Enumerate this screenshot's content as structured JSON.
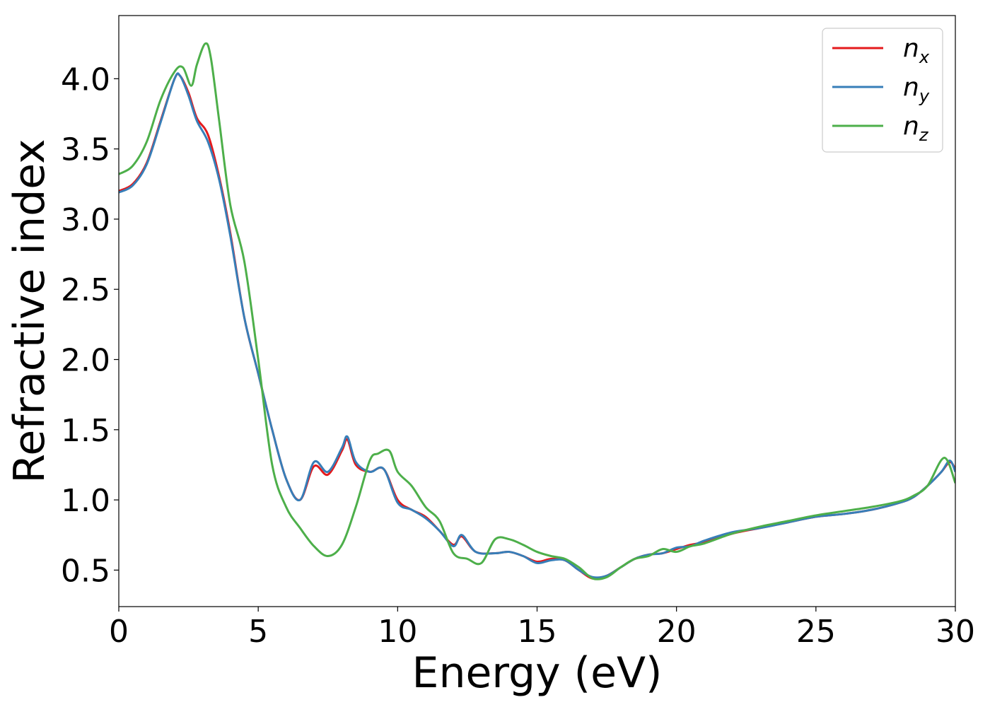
{
  "chart_data": {
    "type": "line",
    "title": "",
    "xlabel": "Energy (eV)",
    "ylabel": "Refractive index",
    "xlim": [
      0,
      30
    ],
    "ylim": [
      0.24,
      4.45
    ],
    "xticks": [
      0,
      5,
      10,
      15,
      20,
      25,
      30
    ],
    "xtick_labels": [
      "0",
      "5",
      "10",
      "15",
      "20",
      "25",
      "30"
    ],
    "yticks": [
      0.5,
      1.0,
      1.5,
      2.0,
      2.5,
      3.0,
      3.5,
      4.0
    ],
    "ytick_labels": [
      "0.5",
      "1.0",
      "1.5",
      "2.0",
      "2.5",
      "3.0",
      "3.5",
      "4.0"
    ],
    "grid": false,
    "legend_position": "top-right",
    "series": [
      {
        "name": "n_x",
        "label_main": "n",
        "label_sub": "x",
        "color": "#e41a1c",
        "x": [
          0,
          0.5,
          1.0,
          1.5,
          2.0,
          2.2,
          2.5,
          2.8,
          3.2,
          3.6,
          4.0,
          4.5,
          5.0,
          5.5,
          6.0,
          6.5,
          7.0,
          7.5,
          8.0,
          8.2,
          8.5,
          9.0,
          9.5,
          10.0,
          10.5,
          11.0,
          11.5,
          12.0,
          12.3,
          12.8,
          13.5,
          14.0,
          14.5,
          15.0,
          15.5,
          16.0,
          16.5,
          17.0,
          17.5,
          18.0,
          18.5,
          19.0,
          19.5,
          20.0,
          20.5,
          21.0,
          22.0,
          23.0,
          24.0,
          25.0,
          26.0,
          27.0,
          28.0,
          28.5,
          29.0,
          29.5,
          29.8,
          30.0
        ],
        "y": [
          3.2,
          3.25,
          3.4,
          3.7,
          4.0,
          4.02,
          3.9,
          3.72,
          3.6,
          3.3,
          2.9,
          2.3,
          1.9,
          1.5,
          1.15,
          1.0,
          1.24,
          1.18,
          1.35,
          1.43,
          1.25,
          1.2,
          1.22,
          1.0,
          0.93,
          0.88,
          0.78,
          0.68,
          0.74,
          0.63,
          0.62,
          0.63,
          0.6,
          0.56,
          0.58,
          0.57,
          0.5,
          0.44,
          0.46,
          0.52,
          0.58,
          0.61,
          0.62,
          0.65,
          0.68,
          0.7,
          0.76,
          0.8,
          0.84,
          0.88,
          0.9,
          0.93,
          0.98,
          1.02,
          1.1,
          1.2,
          1.27,
          1.22
        ]
      },
      {
        "name": "n_y",
        "label_main": "n",
        "label_sub": "y",
        "color": "#377eb8",
        "x": [
          0,
          0.5,
          1.0,
          1.5,
          2.0,
          2.2,
          2.5,
          2.8,
          3.2,
          3.6,
          4.0,
          4.5,
          5.0,
          5.5,
          6.0,
          6.5,
          7.0,
          7.5,
          8.0,
          8.2,
          8.5,
          9.0,
          9.5,
          10.0,
          10.5,
          11.0,
          11.5,
          12.0,
          12.3,
          12.8,
          13.5,
          14.0,
          14.5,
          15.0,
          15.5,
          16.0,
          16.5,
          17.0,
          17.5,
          18.0,
          18.5,
          19.0,
          19.5,
          20.0,
          20.5,
          21.0,
          22.0,
          23.0,
          24.0,
          25.0,
          26.0,
          27.0,
          28.0,
          28.5,
          29.0,
          29.5,
          29.8,
          30.0
        ],
        "y": [
          3.19,
          3.24,
          3.39,
          3.69,
          4.0,
          4.02,
          3.88,
          3.7,
          3.55,
          3.28,
          2.88,
          2.3,
          1.9,
          1.5,
          1.15,
          1.0,
          1.27,
          1.2,
          1.37,
          1.45,
          1.27,
          1.2,
          1.22,
          0.98,
          0.93,
          0.87,
          0.78,
          0.67,
          0.75,
          0.63,
          0.62,
          0.63,
          0.6,
          0.55,
          0.57,
          0.57,
          0.5,
          0.45,
          0.46,
          0.52,
          0.58,
          0.61,
          0.62,
          0.66,
          0.67,
          0.71,
          0.77,
          0.8,
          0.84,
          0.88,
          0.9,
          0.93,
          0.98,
          1.02,
          1.1,
          1.2,
          1.28,
          1.2
        ]
      },
      {
        "name": "n_z",
        "label_main": "n",
        "label_sub": "z",
        "color": "#4daf4a",
        "x": [
          0,
          0.5,
          1.0,
          1.5,
          2.0,
          2.3,
          2.6,
          2.8,
          3.1,
          3.3,
          3.6,
          4.0,
          4.5,
          5.0,
          5.5,
          6.0,
          6.5,
          7.0,
          7.5,
          8.0,
          8.5,
          9.0,
          9.3,
          9.7,
          10.0,
          10.5,
          11.0,
          11.5,
          12.0,
          12.5,
          13.0,
          13.5,
          14.0,
          14.5,
          15.0,
          15.5,
          16.0,
          16.5,
          17.0,
          17.5,
          18.0,
          18.5,
          19.0,
          19.5,
          20.0,
          20.5,
          21.0,
          22.0,
          23.0,
          24.0,
          25.0,
          26.0,
          27.0,
          28.0,
          28.5,
          29.0,
          29.6,
          30.0
        ],
        "y": [
          3.32,
          3.38,
          3.55,
          3.85,
          4.05,
          4.08,
          3.95,
          4.1,
          4.25,
          4.15,
          3.7,
          3.1,
          2.7,
          2.0,
          1.25,
          0.95,
          0.8,
          0.67,
          0.6,
          0.68,
          0.95,
          1.28,
          1.33,
          1.35,
          1.2,
          1.1,
          0.95,
          0.85,
          0.62,
          0.58,
          0.55,
          0.72,
          0.72,
          0.68,
          0.63,
          0.6,
          0.58,
          0.52,
          0.44,
          0.45,
          0.52,
          0.58,
          0.6,
          0.65,
          0.63,
          0.67,
          0.69,
          0.76,
          0.81,
          0.85,
          0.89,
          0.92,
          0.95,
          0.99,
          1.03,
          1.1,
          1.3,
          1.12
        ]
      }
    ]
  }
}
